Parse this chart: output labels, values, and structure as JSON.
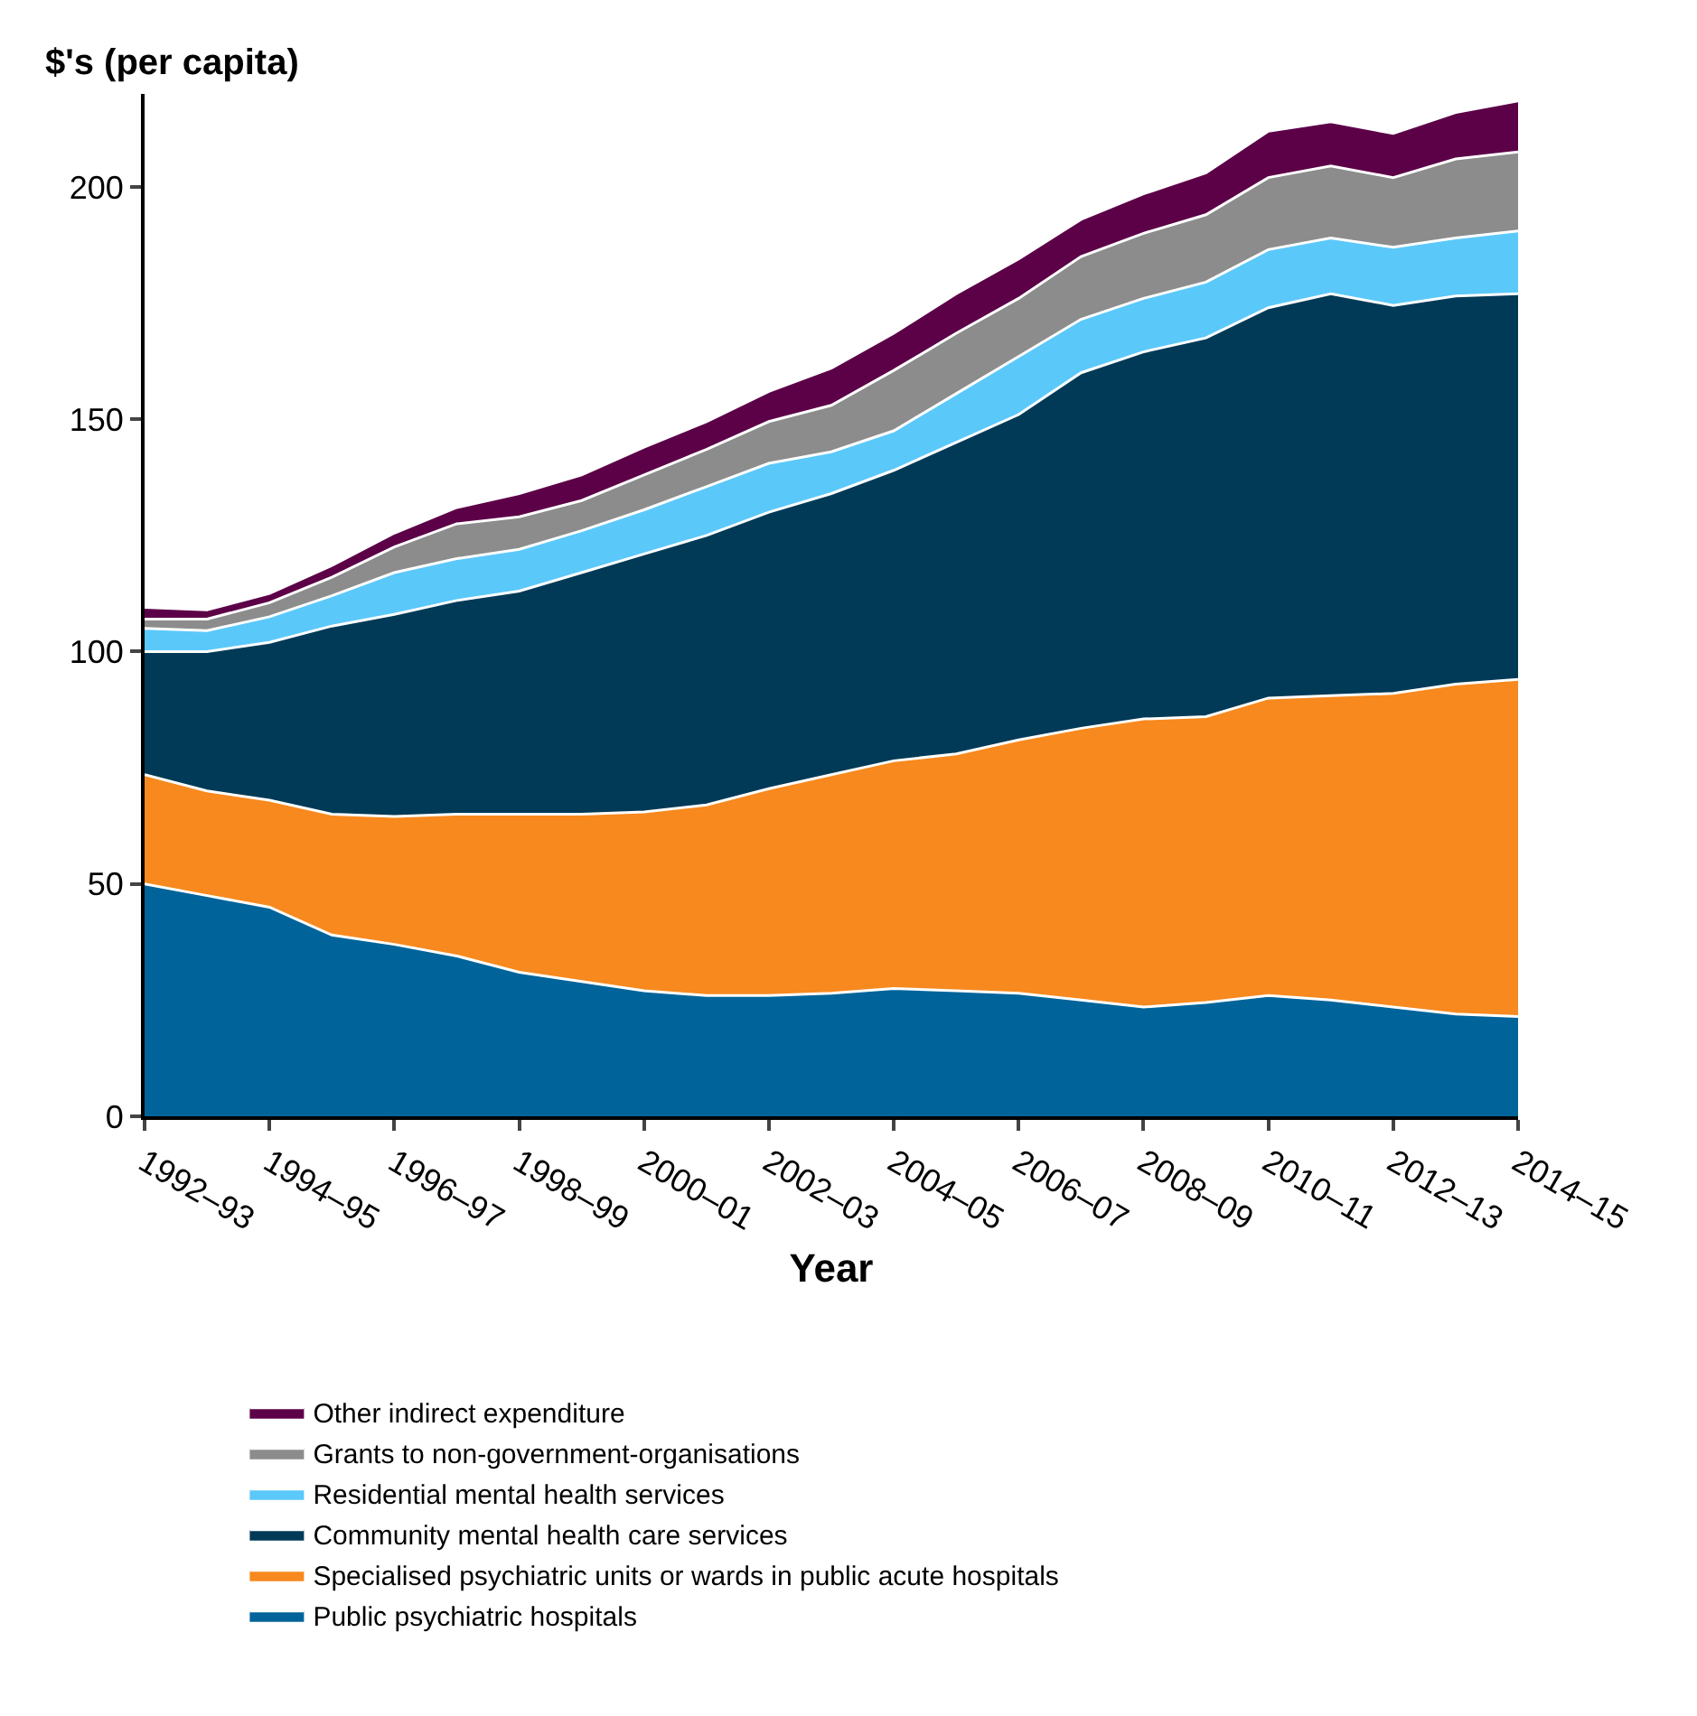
{
  "chart_data": {
    "type": "area",
    "stacked": true,
    "ylabel": "$'s (per capita)",
    "xlabel": "Year",
    "categories": [
      "1992–93",
      null,
      "1994–95",
      null,
      "1996–97",
      null,
      "1998–99",
      null,
      "2000–01",
      null,
      "2002–03",
      null,
      "2004–05",
      null,
      "2006–07",
      null,
      "2008–09",
      null,
      "2010–11",
      null,
      "2012–13",
      null,
      "2014–15"
    ],
    "ylim": [
      0,
      220
    ],
    "yticks": [
      0,
      50,
      100,
      150,
      200
    ],
    "legend": "bottom",
    "series": [
      {
        "name": "Public psychiatric hospitals",
        "color": "#00649a",
        "values": [
          50,
          47.5,
          45,
          39,
          37,
          34.5,
          31,
          29,
          27,
          26,
          26,
          26.5,
          27.5,
          27,
          26.5,
          25,
          23.5,
          24.5,
          26,
          25,
          23.5,
          22,
          21.5
        ]
      },
      {
        "name": "Specialised psychiatric units or wards in public acute hospitals",
        "color": "#f7891e",
        "values": [
          23.5,
          22.5,
          23,
          26,
          27.5,
          30.5,
          34,
          36,
          38.5,
          41,
          44.5,
          47,
          49,
          51,
          54.5,
          58.5,
          62,
          61.5,
          64,
          65.5,
          67.5,
          71,
          72.5
        ]
      },
      {
        "name": "Community mental health care services",
        "color": "#003a57",
        "values": [
          26.5,
          30,
          34,
          40.5,
          43.5,
          46,
          48,
          52,
          55.5,
          58,
          59.5,
          60.5,
          62.5,
          67,
          70,
          76.5,
          79,
          81.5,
          84,
          86.5,
          83.5,
          83.5,
          83
        ]
      },
      {
        "name": "Residential mental health services",
        "color": "#5bc8fa",
        "values": [
          5,
          4.5,
          5.5,
          6.5,
          9,
          9,
          9,
          9,
          9.5,
          10.5,
          10.5,
          9,
          8.5,
          10.5,
          12.5,
          11.5,
          11.5,
          12,
          12.5,
          12,
          12.5,
          12.5,
          13.5
        ]
      },
      {
        "name": "Grants to non-government-organisations",
        "color": "#8c8c8c",
        "values": [
          2,
          2.5,
          3,
          4,
          5.5,
          7.5,
          7,
          6.5,
          7.5,
          8,
          9,
          10,
          13,
          13,
          12.5,
          13.5,
          14,
          14.5,
          15.5,
          15.5,
          15,
          17,
          17
        ]
      },
      {
        "name": "Other indirect expenditure",
        "color": "#5c0047",
        "values": [
          2.5,
          2,
          2,
          2.5,
          3,
          3.5,
          5,
          5.5,
          6,
          6,
          6.5,
          8,
          8,
          8.5,
          8.5,
          8,
          8.5,
          9,
          10,
          9.5,
          9.5,
          10,
          11
        ]
      }
    ]
  }
}
